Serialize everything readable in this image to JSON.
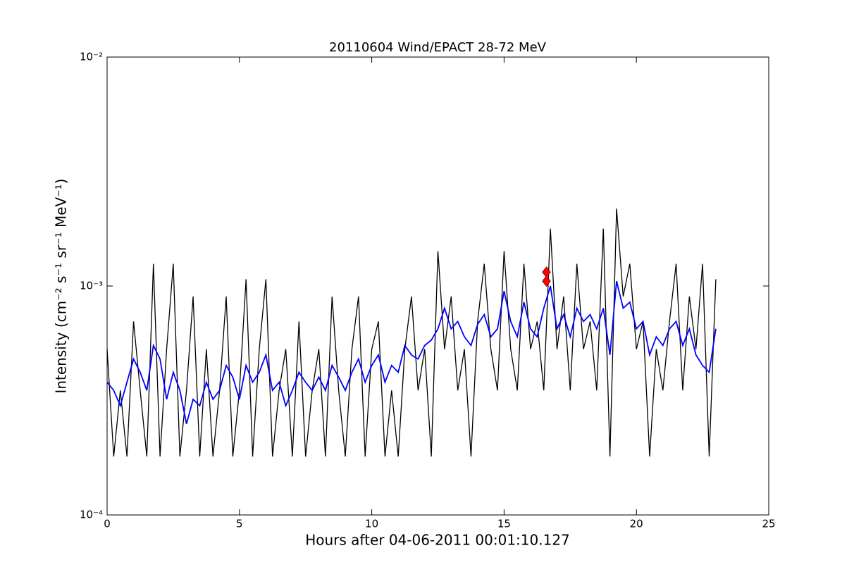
{
  "chart_data": {
    "type": "line",
    "title": "20110604 Wind/EPACT 28-72 MeV",
    "xlabel": "Hours after 04-06-2011 00:01:10.127",
    "ylabel": "Intensity (cm⁻² s⁻¹ sr⁻¹ MeV⁻¹)",
    "xlim": [
      0,
      25
    ],
    "xticks": [
      0,
      5,
      10,
      15,
      20,
      25
    ],
    "ylim": [
      0.0001,
      0.01
    ],
    "log_y": true,
    "yticks": [
      {
        "value": 0.0001,
        "label": "10⁻⁴"
      },
      {
        "value": 0.001,
        "label": "10⁻³"
      },
      {
        "value": 0.01,
        "label": "10⁻²"
      }
    ],
    "x": [
      0,
      0.25,
      0.5,
      0.75,
      1,
      1.25,
      1.5,
      1.75,
      2,
      2.25,
      2.5,
      2.75,
      3,
      3.25,
      3.5,
      3.75,
      4,
      4.25,
      4.5,
      4.75,
      5,
      5.25,
      5.5,
      5.75,
      6,
      6.25,
      6.5,
      6.75,
      7,
      7.25,
      7.5,
      7.75,
      8,
      8.25,
      8.5,
      8.75,
      9,
      9.25,
      9.5,
      9.75,
      10,
      10.25,
      10.5,
      10.75,
      11,
      11.25,
      11.5,
      11.75,
      12,
      12.25,
      12.5,
      12.75,
      13,
      13.25,
      13.5,
      13.75,
      14,
      14.25,
      14.5,
      14.75,
      15,
      15.25,
      15.5,
      15.75,
      16,
      16.25,
      16.5,
      16.75,
      17,
      17.25,
      17.5,
      17.75,
      18,
      18.25,
      18.5,
      18.75,
      19,
      19.25,
      19.5,
      19.75,
      20,
      20.25,
      20.5,
      20.75,
      21,
      21.25,
      21.5,
      21.75,
      22,
      22.25,
      22.5,
      22.75,
      23
    ],
    "series": [
      {
        "color": "#000000",
        "values": [
          0.00053,
          0.00018,
          0.00035,
          0.00018,
          0.0007,
          0.00035,
          0.00018,
          0.00125,
          0.00018,
          0.00053,
          0.00125,
          0.00018,
          0.00035,
          0.0009,
          0.00018,
          0.00053,
          0.00018,
          0.00035,
          0.0009,
          0.00018,
          0.00035,
          0.00107,
          0.00018,
          0.00053,
          0.00107,
          0.00018,
          0.00035,
          0.00053,
          0.00018,
          0.0007,
          0.00018,
          0.00035,
          0.00053,
          0.00018,
          0.0009,
          0.00035,
          0.00018,
          0.00053,
          0.0009,
          0.00018,
          0.00053,
          0.0007,
          0.00018,
          0.00035,
          0.00018,
          0.00053,
          0.0009,
          0.00035,
          0.00053,
          0.00018,
          0.00142,
          0.00053,
          0.0009,
          0.00035,
          0.00053,
          0.00018,
          0.0007,
          0.00125,
          0.00053,
          0.00035,
          0.00142,
          0.00053,
          0.00035,
          0.00125,
          0.00053,
          0.0007,
          0.00035,
          0.00178,
          0.00053,
          0.0009,
          0.00035,
          0.00125,
          0.00053,
          0.0007,
          0.00035,
          0.00178,
          0.00018,
          0.00218,
          0.0009,
          0.00125,
          0.00053,
          0.0007,
          0.00018,
          0.00053,
          0.00035,
          0.0007,
          0.00125,
          0.00035,
          0.0009,
          0.00053,
          0.00125,
          0.00018,
          0.00107
        ]
      },
      {
        "color": "#0000ff",
        "values": [
          0.00038,
          0.00035,
          0.0003,
          0.00038,
          0.00048,
          0.00042,
          0.00035,
          0.00055,
          0.00048,
          0.00032,
          0.00042,
          0.00035,
          0.00025,
          0.00032,
          0.0003,
          0.00038,
          0.00032,
          0.00035,
          0.00045,
          0.0004,
          0.00032,
          0.00045,
          0.00038,
          0.00042,
          0.0005,
          0.00035,
          0.00038,
          0.0003,
          0.00035,
          0.00042,
          0.00038,
          0.00035,
          0.0004,
          0.00035,
          0.00045,
          0.0004,
          0.00035,
          0.00042,
          0.00048,
          0.00038,
          0.00045,
          0.0005,
          0.00038,
          0.00045,
          0.00042,
          0.00055,
          0.0005,
          0.00048,
          0.00055,
          0.00058,
          0.00065,
          0.0008,
          0.00065,
          0.0007,
          0.0006,
          0.00055,
          0.00068,
          0.00075,
          0.0006,
          0.00065,
          0.00095,
          0.0007,
          0.0006,
          0.00085,
          0.00065,
          0.0006,
          0.0008,
          0.001,
          0.00065,
          0.00075,
          0.0006,
          0.0008,
          0.0007,
          0.00075,
          0.00065,
          0.0008,
          0.0005,
          0.00105,
          0.0008,
          0.00085,
          0.00065,
          0.0007,
          0.0005,
          0.0006,
          0.00055,
          0.00065,
          0.0007,
          0.00055,
          0.00065,
          0.0005,
          0.00045,
          0.00042,
          0.00065
        ]
      }
    ],
    "markers": {
      "color": "#ff0000",
      "x": [
        16.6,
        16.6
      ],
      "values": [
        0.00115,
        0.00105
      ]
    }
  }
}
